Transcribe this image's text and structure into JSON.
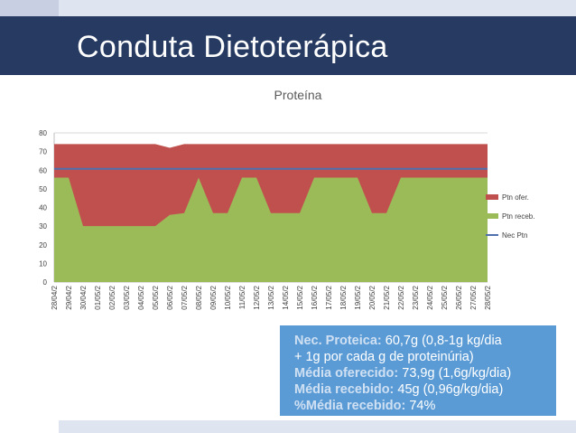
{
  "slide": {
    "title": "Conduta Dietoterápica"
  },
  "info": {
    "line1_label": "Nec. Proteica:",
    "line1_value": "60,7g (0,8-1g kg/dia",
    "line2": "+ 1g por cada g de proteinúria)",
    "line3_label": "Média oferecido:",
    "line3_value": "73,9g (1,6g/kg/dia)",
    "line4_label": "Média recebido:",
    "line4_value": "45g (0,96g/kg/dia)",
    "line5_label": "%Média recebido:",
    "line5_value": "74%"
  },
  "colors": {
    "header": "#263a62",
    "ptn_ofer": "#c0504d",
    "ptn_receb": "#9bbb59",
    "nec_ptn": "#4f6fad",
    "info_box": "#5b9bd5"
  },
  "chart_data": {
    "type": "area",
    "title": "Proteína",
    "xlabel": "",
    "ylabel": "",
    "ylim": [
      0,
      80
    ],
    "yticks": [
      0,
      10,
      20,
      30,
      40,
      50,
      60,
      70,
      80
    ],
    "grid": true,
    "legend_position": "right",
    "categories": [
      "28/04/2",
      "29/04/2",
      "30/04/2",
      "01/05/2",
      "02/05/2",
      "03/05/2",
      "04/05/2",
      "05/05/2",
      "06/05/2",
      "07/05/2",
      "08/05/2",
      "09/05/2",
      "10/05/2",
      "11/05/2",
      "12/05/2",
      "13/05/2",
      "14/05/2",
      "15/05/2",
      "16/05/2",
      "17/05/2",
      "18/05/2",
      "19/05/2",
      "20/05/2",
      "21/05/2",
      "22/05/2",
      "23/05/2",
      "24/05/2",
      "25/05/2",
      "26/05/2",
      "27/05/2",
      "28/05/2"
    ],
    "series": [
      {
        "name": "Ptn ofer.",
        "kind": "area",
        "values": [
          74,
          74,
          74,
          74,
          74,
          74,
          74,
          74,
          72,
          74,
          74,
          74,
          74,
          74,
          74,
          74,
          74,
          74,
          74,
          74,
          74,
          74,
          74,
          74,
          74,
          74,
          74,
          74,
          74,
          74,
          74
        ]
      },
      {
        "name": "Ptn receb.",
        "kind": "area",
        "values": [
          56,
          56,
          30,
          30,
          30,
          30,
          30,
          30,
          36,
          37,
          56,
          37,
          37,
          56,
          56,
          37,
          37,
          37,
          56,
          56,
          56,
          56,
          37,
          37,
          56,
          56,
          56,
          56,
          56,
          56,
          56
        ]
      },
      {
        "name": "Nec Ptn",
        "kind": "line",
        "values": [
          60.7,
          60.7,
          60.7,
          60.7,
          60.7,
          60.7,
          60.7,
          60.7,
          60.7,
          60.7,
          60.7,
          60.7,
          60.7,
          60.7,
          60.7,
          60.7,
          60.7,
          60.7,
          60.7,
          60.7,
          60.7,
          60.7,
          60.7,
          60.7,
          60.7,
          60.7,
          60.7,
          60.7,
          60.7,
          60.7,
          60.7
        ]
      }
    ]
  }
}
